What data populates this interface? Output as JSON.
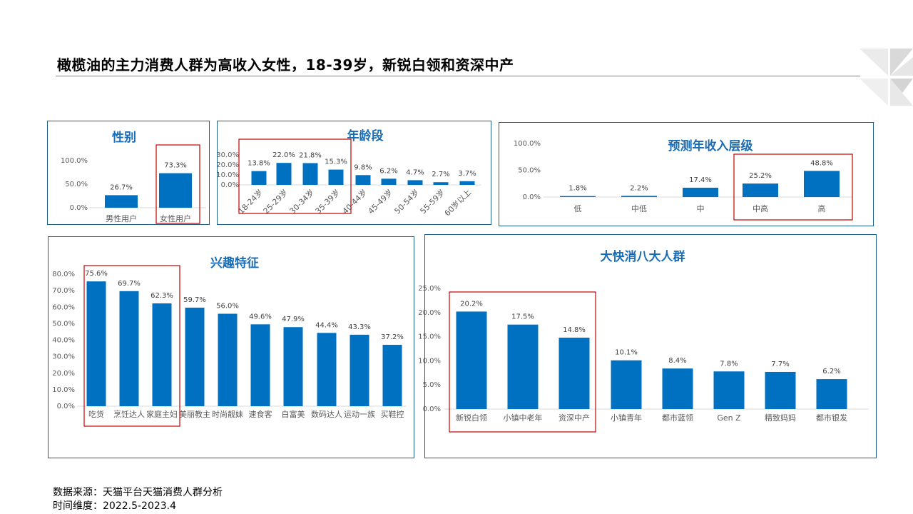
{
  "page": {
    "title": "橄榄油的主力消费人群为高收入女性，18-39岁，新锐白领和资深中产",
    "source": "数据来源：天猫平台天猫消费人群分析",
    "period": "时间维度：2022.5-2023.4"
  },
  "colors": {
    "bar": "#0070c0",
    "title": "#1a6db5",
    "highlight": "#c00000",
    "border": "#1f5f8b"
  },
  "chart_data": [
    {
      "id": "gender",
      "type": "bar",
      "title": "性别",
      "categories": [
        "男性用户",
        "女性用户"
      ],
      "values": [
        26.7,
        73.3
      ],
      "labels": [
        "26.7%",
        "73.3%"
      ],
      "yticks": [
        "0.0%",
        "50.0%",
        "100.0%"
      ],
      "ylim": [
        0,
        100
      ],
      "highlight": [
        "女性用户"
      ]
    },
    {
      "id": "age",
      "type": "bar",
      "title": "年龄段",
      "categories": [
        "18-24岁",
        "25-29岁",
        "30-34岁",
        "35-39岁",
        "40-44岁",
        "45-49岁",
        "50-54岁",
        "55-59岁",
        "60岁以上"
      ],
      "values": [
        13.8,
        22.0,
        21.8,
        15.3,
        9.8,
        6.2,
        4.7,
        2.7,
        3.7
      ],
      "labels": [
        "13.8%",
        "22.0%",
        "21.8%",
        "15.3%",
        "9.8%",
        "6.2%",
        "4.7%",
        "2.7%",
        "3.7%"
      ],
      "yticks": [
        "0.0%",
        "10.0%",
        "20.0%",
        "30.0%"
      ],
      "ylim": [
        0,
        30
      ],
      "highlight": [
        "18-24岁",
        "25-29岁",
        "30-34岁",
        "35-39岁"
      ]
    },
    {
      "id": "income",
      "type": "bar",
      "title": "预测年收入层级",
      "categories": [
        "低",
        "中低",
        "中",
        "中高",
        "高"
      ],
      "values": [
        1.8,
        2.2,
        17.4,
        25.2,
        48.8
      ],
      "labels": [
        "1.8%",
        "2.2%",
        "17.4%",
        "25.2%",
        "48.8%"
      ],
      "yticks": [
        "0.0%",
        "50.0%",
        "100.0%"
      ],
      "ylim": [
        0,
        100
      ],
      "highlight": [
        "中高",
        "高"
      ]
    },
    {
      "id": "interest",
      "type": "bar",
      "title": "兴趣特征",
      "categories": [
        "吃货",
        "烹饪达人",
        "家庭主妇",
        "美丽教主",
        "时尚靓妹",
        "速食客",
        "白富美",
        "数码达人",
        "运动一族",
        "买鞋控"
      ],
      "values": [
        75.6,
        69.7,
        62.3,
        59.7,
        56.0,
        49.6,
        47.9,
        44.4,
        43.3,
        37.2
      ],
      "labels": [
        "75.6%",
        "69.7%",
        "62.3%",
        "59.7%",
        "56.0%",
        "49.6%",
        "47.9%",
        "44.4%",
        "43.3%",
        "37.2%"
      ],
      "yticks": [
        "0.0%",
        "10.0%",
        "20.0%",
        "30.0%",
        "40.0%",
        "50.0%",
        "60.0%",
        "70.0%",
        "80.0%"
      ],
      "ylim": [
        0,
        80
      ],
      "highlight": [
        "吃货",
        "烹饪达人",
        "家庭主妇"
      ]
    },
    {
      "id": "fmcg",
      "type": "bar",
      "title": "大快消八大人群",
      "categories": [
        "新锐白领",
        "小镇中老年",
        "资深中产",
        "小镇青年",
        "都市蓝领",
        "Gen Z",
        "精致妈妈",
        "都市银发"
      ],
      "values": [
        20.2,
        17.5,
        14.8,
        10.1,
        8.4,
        7.8,
        7.7,
        6.2
      ],
      "labels": [
        "20.2%",
        "17.5%",
        "14.8%",
        "10.1%",
        "8.4%",
        "7.8%",
        "7.7%",
        "6.2%"
      ],
      "yticks": [
        "0.0%",
        "5.0%",
        "10.0%",
        "15.0%",
        "20.0%",
        "25.0%"
      ],
      "ylim": [
        0,
        25
      ],
      "highlight": [
        "新锐白领",
        "小镇中老年",
        "资深中产"
      ]
    }
  ]
}
